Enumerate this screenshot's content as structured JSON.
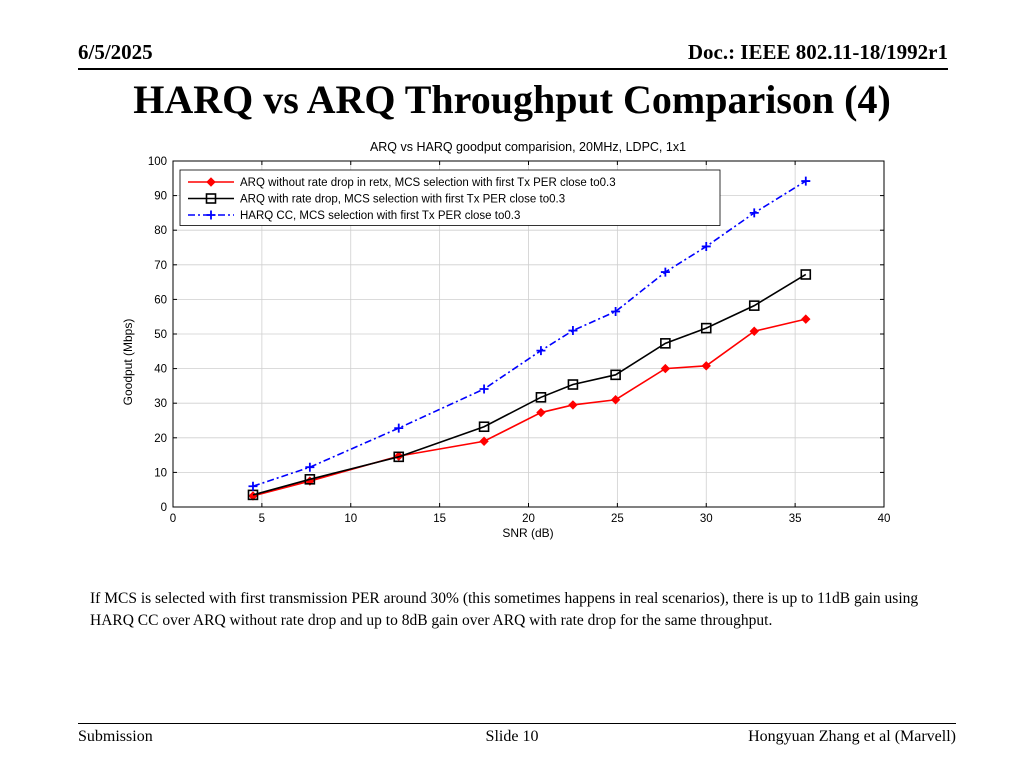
{
  "header": {
    "date": "6/5/2025",
    "doc": "Doc.: IEEE 802.11-18/1992r1"
  },
  "slide_title": "HARQ vs ARQ Throughput Comparison (4)",
  "chart_data": {
    "type": "line",
    "title": "ARQ vs HARQ goodput comparision, 20MHz, LDPC, 1x1",
    "xlabel": "SNR (dB)",
    "ylabel": "Goodput (Mbps)",
    "xlim": [
      0,
      40
    ],
    "ylim": [
      0,
      100
    ],
    "xticks": [
      0,
      5,
      10,
      15,
      20,
      25,
      30,
      35,
      40
    ],
    "yticks": [
      0,
      10,
      20,
      30,
      40,
      50,
      60,
      70,
      80,
      90,
      100
    ],
    "grid": true,
    "legend_position": "top-left",
    "series": [
      {
        "name": "ARQ without rate drop in retx, MCS selection with first Tx PER close to0.3",
        "color": "#ff0000",
        "marker": "diamond",
        "linestyle": "solid",
        "x": [
          4.5,
          7.7,
          12.7,
          17.5,
          20.7,
          22.5,
          24.9,
          27.7,
          30.0,
          32.7,
          35.6
        ],
        "y": [
          3.2,
          7.5,
          14.7,
          19.0,
          27.3,
          29.5,
          31.0,
          40.0,
          40.8,
          50.8,
          54.3
        ]
      },
      {
        "name": "ARQ with rate drop, MCS selection with first Tx PER close to0.3",
        "color": "#000000",
        "marker": "square",
        "linestyle": "solid",
        "x": [
          4.5,
          7.7,
          12.7,
          17.5,
          20.7,
          22.5,
          24.9,
          27.7,
          30.0,
          32.7,
          35.6
        ],
        "y": [
          3.5,
          8.0,
          14.5,
          23.2,
          31.7,
          35.4,
          38.2,
          47.3,
          51.7,
          58.2,
          67.2
        ]
      },
      {
        "name": "HARQ CC, MCS selection with first Tx PER close to0.3",
        "color": "#0000ff",
        "marker": "plus",
        "linestyle": "dashdot",
        "x": [
          4.5,
          7.7,
          12.7,
          17.5,
          20.7,
          22.5,
          24.9,
          27.7,
          30.0,
          32.7,
          35.6
        ],
        "y": [
          6.0,
          11.5,
          22.8,
          34.1,
          45.2,
          51.0,
          56.5,
          67.9,
          75.3,
          85.0,
          94.2
        ]
      }
    ]
  },
  "note": "If MCS is selected with first transmission PER around 30% (this sometimes happens in real scenarios), there is up to 11dB gain using HARQ CC over ARQ without rate drop and up to 8dB gain over ARQ with rate drop for the same throughput.",
  "footer": {
    "left": "Submission",
    "center": "Slide 10",
    "right": "Hongyuan Zhang et al (Marvell)"
  }
}
